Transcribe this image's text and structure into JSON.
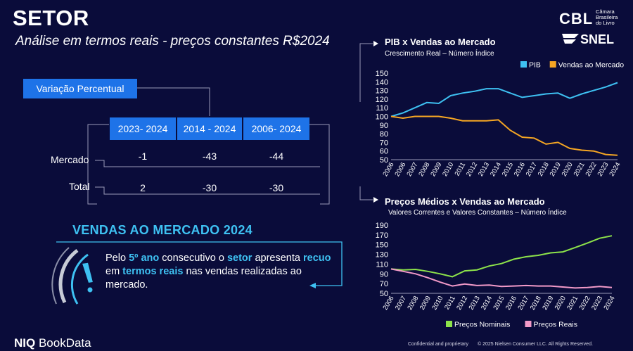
{
  "header": {
    "title": "SETOR",
    "subtitle": "Análise em termos reais - preços constantes R$2024"
  },
  "logos": {
    "cbl": "CBL",
    "cbl_sub": [
      "Câmara",
      "Brasileira",
      "do Livro"
    ],
    "snel": "SNEL",
    "footer_brand_bold": "NIQ",
    "footer_brand_rest": " BookData"
  },
  "table": {
    "label": "Variação Percentual",
    "columns": [
      "2023- 2024",
      "2014 - 2024",
      "2006- 2024"
    ],
    "rows": [
      {
        "label": "Mercado",
        "values": [
          "-1",
          "-43",
          "-44"
        ]
      },
      {
        "label": "Total",
        "values": [
          "2",
          "-30",
          "-30"
        ]
      }
    ]
  },
  "vendas": {
    "title": "VENDAS AO MERCADO 2024",
    "text_parts": [
      "Pelo ",
      "5º ano",
      " consecutivo o ",
      "setor",
      " apresenta ",
      "recuo",
      " em ",
      "termos reais",
      " nas vendas realizadas ao mercado."
    ]
  },
  "chart_data": [
    {
      "type": "line",
      "title": "PIB x Vendas ao Mercado",
      "subtitle": "Crescimento Real – Número Índice",
      "x": [
        "2006",
        "2006",
        "2007",
        "2008",
        "2009",
        "2010",
        "2011",
        "2012",
        "2013",
        "2014",
        "2015",
        "2016",
        "2017",
        "2018",
        "2019",
        "2020",
        "2021",
        "2022",
        "2023",
        "2024"
      ],
      "ylim": [
        50,
        150
      ],
      "yticks": [
        50,
        60,
        70,
        80,
        90,
        100,
        110,
        120,
        130,
        140,
        150
      ],
      "legend_position": "top-right",
      "series": [
        {
          "name": "PIB",
          "color": "#3ec1f2",
          "values": [
            100,
            104,
            110,
            116,
            115,
            124,
            127,
            129,
            132,
            132,
            127,
            122,
            124,
            126,
            127,
            121,
            126,
            130,
            134,
            139
          ]
        },
        {
          "name": "Vendas ao Mercado",
          "color": "#f5a623",
          "values": [
            100,
            98,
            100,
            100,
            100,
            98,
            95,
            95,
            95,
            96,
            84,
            76,
            75,
            68,
            70,
            63,
            61,
            60,
            56,
            55
          ]
        }
      ]
    },
    {
      "type": "line",
      "title": "Preços  Médios x Vendas ao Mercado",
      "subtitle": "Valores Correntes e Valores Constantes – Número Índice",
      "x": [
        "2006",
        "2007",
        "2008",
        "2009",
        "2010",
        "2011",
        "2012",
        "2013",
        "2014",
        "2015",
        "2016",
        "2017",
        "2018",
        "2019",
        "2020",
        "2021",
        "2022",
        "2023",
        "2024"
      ],
      "ylim": [
        50,
        190
      ],
      "yticks": [
        50,
        70,
        90,
        110,
        130,
        150,
        170,
        190
      ],
      "legend_position": "bottom",
      "series": [
        {
          "name": "Preços Nominais",
          "color": "#8de34a",
          "values": [
            100,
            98,
            99,
            95,
            90,
            84,
            96,
            98,
            106,
            111,
            120,
            125,
            128,
            133,
            135,
            144,
            153,
            163,
            168
          ]
        },
        {
          "name": "Preços Reais",
          "color": "#f29ac8",
          "values": [
            100,
            95,
            90,
            82,
            73,
            65,
            69,
            66,
            67,
            64,
            65,
            66,
            65,
            65,
            63,
            61,
            62,
            64,
            62
          ]
        }
      ]
    }
  ],
  "footer": {
    "confidential": "Confidential and proprietary",
    "copyright": "© 2025 Nielsen Consumer LLC. All Rights Reserved."
  }
}
